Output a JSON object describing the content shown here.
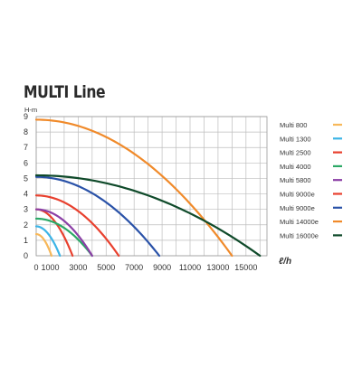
{
  "chart_data": {
    "type": "line",
    "title": "MULTI Line",
    "ylabel": "H-m",
    "xlabel": "ℓ/h",
    "xlim": [
      0,
      16500
    ],
    "ylim": [
      0,
      9
    ],
    "x_ticks": [
      0,
      1000,
      3000,
      5000,
      7000,
      9000,
      11000,
      13000,
      15000
    ],
    "x_tick_labels": [
      "0",
      "1000",
      "3000",
      "5000",
      "7000",
      "9000",
      "11000",
      "13000",
      "15000"
    ],
    "y_ticks": [
      0,
      1,
      2,
      3,
      4,
      5,
      6,
      7,
      8,
      9
    ],
    "y_tick_labels": [
      "0",
      "1",
      "2",
      "3",
      "4",
      "5",
      "6",
      "7",
      "8",
      "9"
    ],
    "grid": true,
    "legend_position": "right",
    "series": [
      {
        "name": "Multi 800",
        "color": "#f7b85a",
        "head": 1.4,
        "max_flow": 1100
      },
      {
        "name": "Multi 1300",
        "color": "#3cb4e6",
        "head": 1.9,
        "max_flow": 1700
      },
      {
        "name": "Multi 2500",
        "color": "#e8402e",
        "head": 3.0,
        "max_flow": 2600
      },
      {
        "name": "Multi 4000",
        "color": "#2ba866",
        "head": 2.4,
        "max_flow": 4000
      },
      {
        "name": "Multi 5800",
        "color": "#8b3fa6",
        "head": 3.0,
        "max_flow": 4000
      },
      {
        "name": "Multi 9000e",
        "color": "#e8402e",
        "head": 3.9,
        "max_flow": 5900
      },
      {
        "name": "Multi 9000e",
        "color": "#2a52a8",
        "head": 5.1,
        "max_flow": 8800
      },
      {
        "name": "Multi 14000e",
        "color": "#f08a2a",
        "head": 8.8,
        "max_flow": 14000
      },
      {
        "name": "Multi 16000e",
        "color": "#0f4a2a",
        "head": 5.2,
        "max_flow": 16000
      }
    ]
  }
}
